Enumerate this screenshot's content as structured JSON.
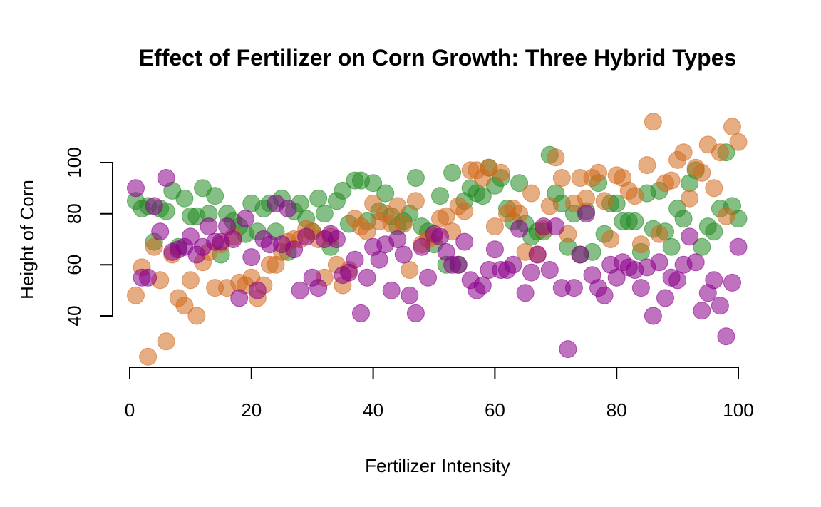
{
  "chart_data": {
    "type": "scatter",
    "title": "Effect of Fertilizer on Corn Growth: Three Hybrid Types",
    "xlabel": "Fertilizer Intensity",
    "ylabel": "Height of Corn",
    "xlim": [
      0,
      100
    ],
    "ylim": [
      20,
      115
    ],
    "x_ticks": [
      "0",
      "20",
      "40",
      "60",
      "80",
      "100"
    ],
    "y_ticks": [
      "40",
      "60",
      "80",
      "100"
    ],
    "grid": false,
    "legend": "none",
    "series": [
      {
        "color": "#228B22",
        "opacity": 0.55,
        "x": [
          1,
          2,
          3,
          4,
          5,
          6,
          7,
          8,
          9,
          10,
          11,
          12,
          13,
          14,
          15,
          16,
          17,
          18,
          19,
          20,
          21,
          22,
          23,
          24,
          25,
          26,
          27,
          28,
          29,
          30,
          31,
          32,
          33,
          34,
          35,
          36,
          37,
          38,
          39,
          40,
          41,
          42,
          43,
          44,
          45,
          46,
          47,
          48,
          49,
          50,
          51,
          52,
          53,
          54,
          55,
          56,
          57,
          58,
          59,
          60,
          61,
          62,
          63,
          64,
          65,
          66,
          67,
          68,
          69,
          70,
          71,
          72,
          73,
          74,
          75,
          76,
          77,
          78,
          79,
          80,
          81,
          82,
          83,
          84,
          85,
          86,
          87,
          88,
          89,
          90,
          91,
          92,
          93,
          94,
          95,
          96,
          97,
          98,
          99,
          100
        ],
        "y": [
          85,
          82,
          83,
          69,
          82,
          81,
          89,
          67,
          86,
          79,
          79,
          90,
          80,
          87,
          64,
          80,
          77,
          75,
          72,
          84,
          73,
          82,
          84,
          73,
          86,
          65,
          81,
          84,
          78,
          73,
          86,
          80,
          67,
          85,
          89,
          76,
          93,
          93,
          77,
          92,
          81,
          88,
          79,
          75,
          77,
          80,
          94,
          75,
          73,
          68,
          87,
          60,
          96,
          60,
          85,
          90,
          88,
          87,
          98,
          91,
          94,
          82,
          77,
          92,
          76,
          71,
          73,
          73,
          103,
          88,
          84,
          67,
          80,
          64,
          81,
          65,
          92,
          72,
          84,
          84,
          77,
          77,
          77,
          65,
          88,
          74,
          89,
          73,
          67,
          82,
          78,
          92,
          97,
          67,
          75,
          73,
          82,
          104,
          83,
          78
        ]
      },
      {
        "color": "#D2691E",
        "opacity": 0.55,
        "x": [
          1,
          2,
          3,
          4,
          5,
          6,
          7,
          8,
          9,
          10,
          11,
          12,
          13,
          14,
          15,
          16,
          17,
          18,
          19,
          20,
          21,
          22,
          23,
          24,
          25,
          26,
          27,
          28,
          29,
          30,
          31,
          32,
          33,
          34,
          35,
          36,
          37,
          38,
          39,
          40,
          41,
          42,
          43,
          44,
          45,
          46,
          47,
          48,
          49,
          50,
          51,
          52,
          53,
          54,
          55,
          56,
          57,
          58,
          59,
          60,
          61,
          62,
          63,
          64,
          65,
          66,
          67,
          68,
          69,
          70,
          71,
          72,
          73,
          74,
          75,
          76,
          77,
          78,
          79,
          80,
          81,
          82,
          83,
          84,
          85,
          86,
          87,
          88,
          89,
          90,
          91,
          92,
          93,
          94,
          95,
          96,
          97,
          98,
          99,
          100
        ],
        "y": [
          48,
          59,
          24,
          67,
          54,
          30,
          64,
          47,
          44,
          54,
          40,
          61,
          65,
          51,
          68,
          51,
          71,
          53,
          52,
          55,
          47,
          52,
          60,
          60,
          65,
          69,
          70,
          70,
          74,
          73,
          70,
          55,
          71,
          60,
          52,
          58,
          78,
          75,
          73,
          84,
          77,
          80,
          76,
          83,
          76,
          58,
          85,
          68,
          70,
          71,
          78,
          79,
          73,
          83,
          81,
          97,
          97,
          94,
          98,
          75,
          96,
          80,
          82,
          80,
          65,
          88,
          64,
          74,
          83,
          102,
          94,
          72,
          84,
          94,
          86,
          94,
          96,
          85,
          70,
          95,
          94,
          89,
          87,
          68,
          99,
          116,
          72,
          92,
          93,
          101,
          104,
          86,
          98,
          96,
          107,
          90,
          104,
          79,
          114,
          108
        ]
      },
      {
        "color": "#8B008B",
        "opacity": 0.55,
        "x": [
          1,
          2,
          3,
          4,
          5,
          6,
          7,
          8,
          9,
          10,
          11,
          12,
          13,
          14,
          15,
          16,
          17,
          18,
          19,
          20,
          21,
          22,
          23,
          24,
          25,
          26,
          27,
          28,
          29,
          30,
          31,
          32,
          33,
          34,
          35,
          36,
          37,
          38,
          39,
          40,
          41,
          42,
          43,
          44,
          45,
          46,
          47,
          48,
          49,
          50,
          51,
          52,
          53,
          54,
          55,
          56,
          57,
          58,
          59,
          60,
          61,
          62,
          63,
          64,
          65,
          66,
          67,
          68,
          69,
          70,
          71,
          72,
          73,
          74,
          75,
          76,
          77,
          78,
          79,
          80,
          81,
          82,
          83,
          84,
          85,
          86,
          87,
          88,
          89,
          90,
          91,
          92,
          93,
          94,
          95,
          96,
          97,
          98,
          99,
          100
        ],
        "y": [
          90,
          55,
          55,
          83,
          73,
          94,
          65,
          66,
          67,
          71,
          64,
          67,
          75,
          69,
          69,
          75,
          70,
          47,
          78,
          63,
          50,
          70,
          68,
          84,
          68,
          82,
          66,
          50,
          71,
          55,
          51,
          70,
          72,
          70,
          56,
          57,
          62,
          41,
          55,
          67,
          62,
          68,
          50,
          70,
          64,
          48,
          41,
          67,
          55,
          72,
          71,
          65,
          60,
          60,
          69,
          54,
          50,
          52,
          58,
          66,
          58,
          58,
          60,
          74,
          49,
          57,
          64,
          75,
          58,
          75,
          51,
          27,
          51,
          64,
          80,
          56,
          51,
          48,
          60,
          55,
          61,
          59,
          58,
          51,
          59,
          40,
          61,
          47,
          55,
          54,
          60,
          71,
          61,
          42,
          49,
          54,
          44,
          32,
          53,
          67
        ]
      }
    ]
  }
}
